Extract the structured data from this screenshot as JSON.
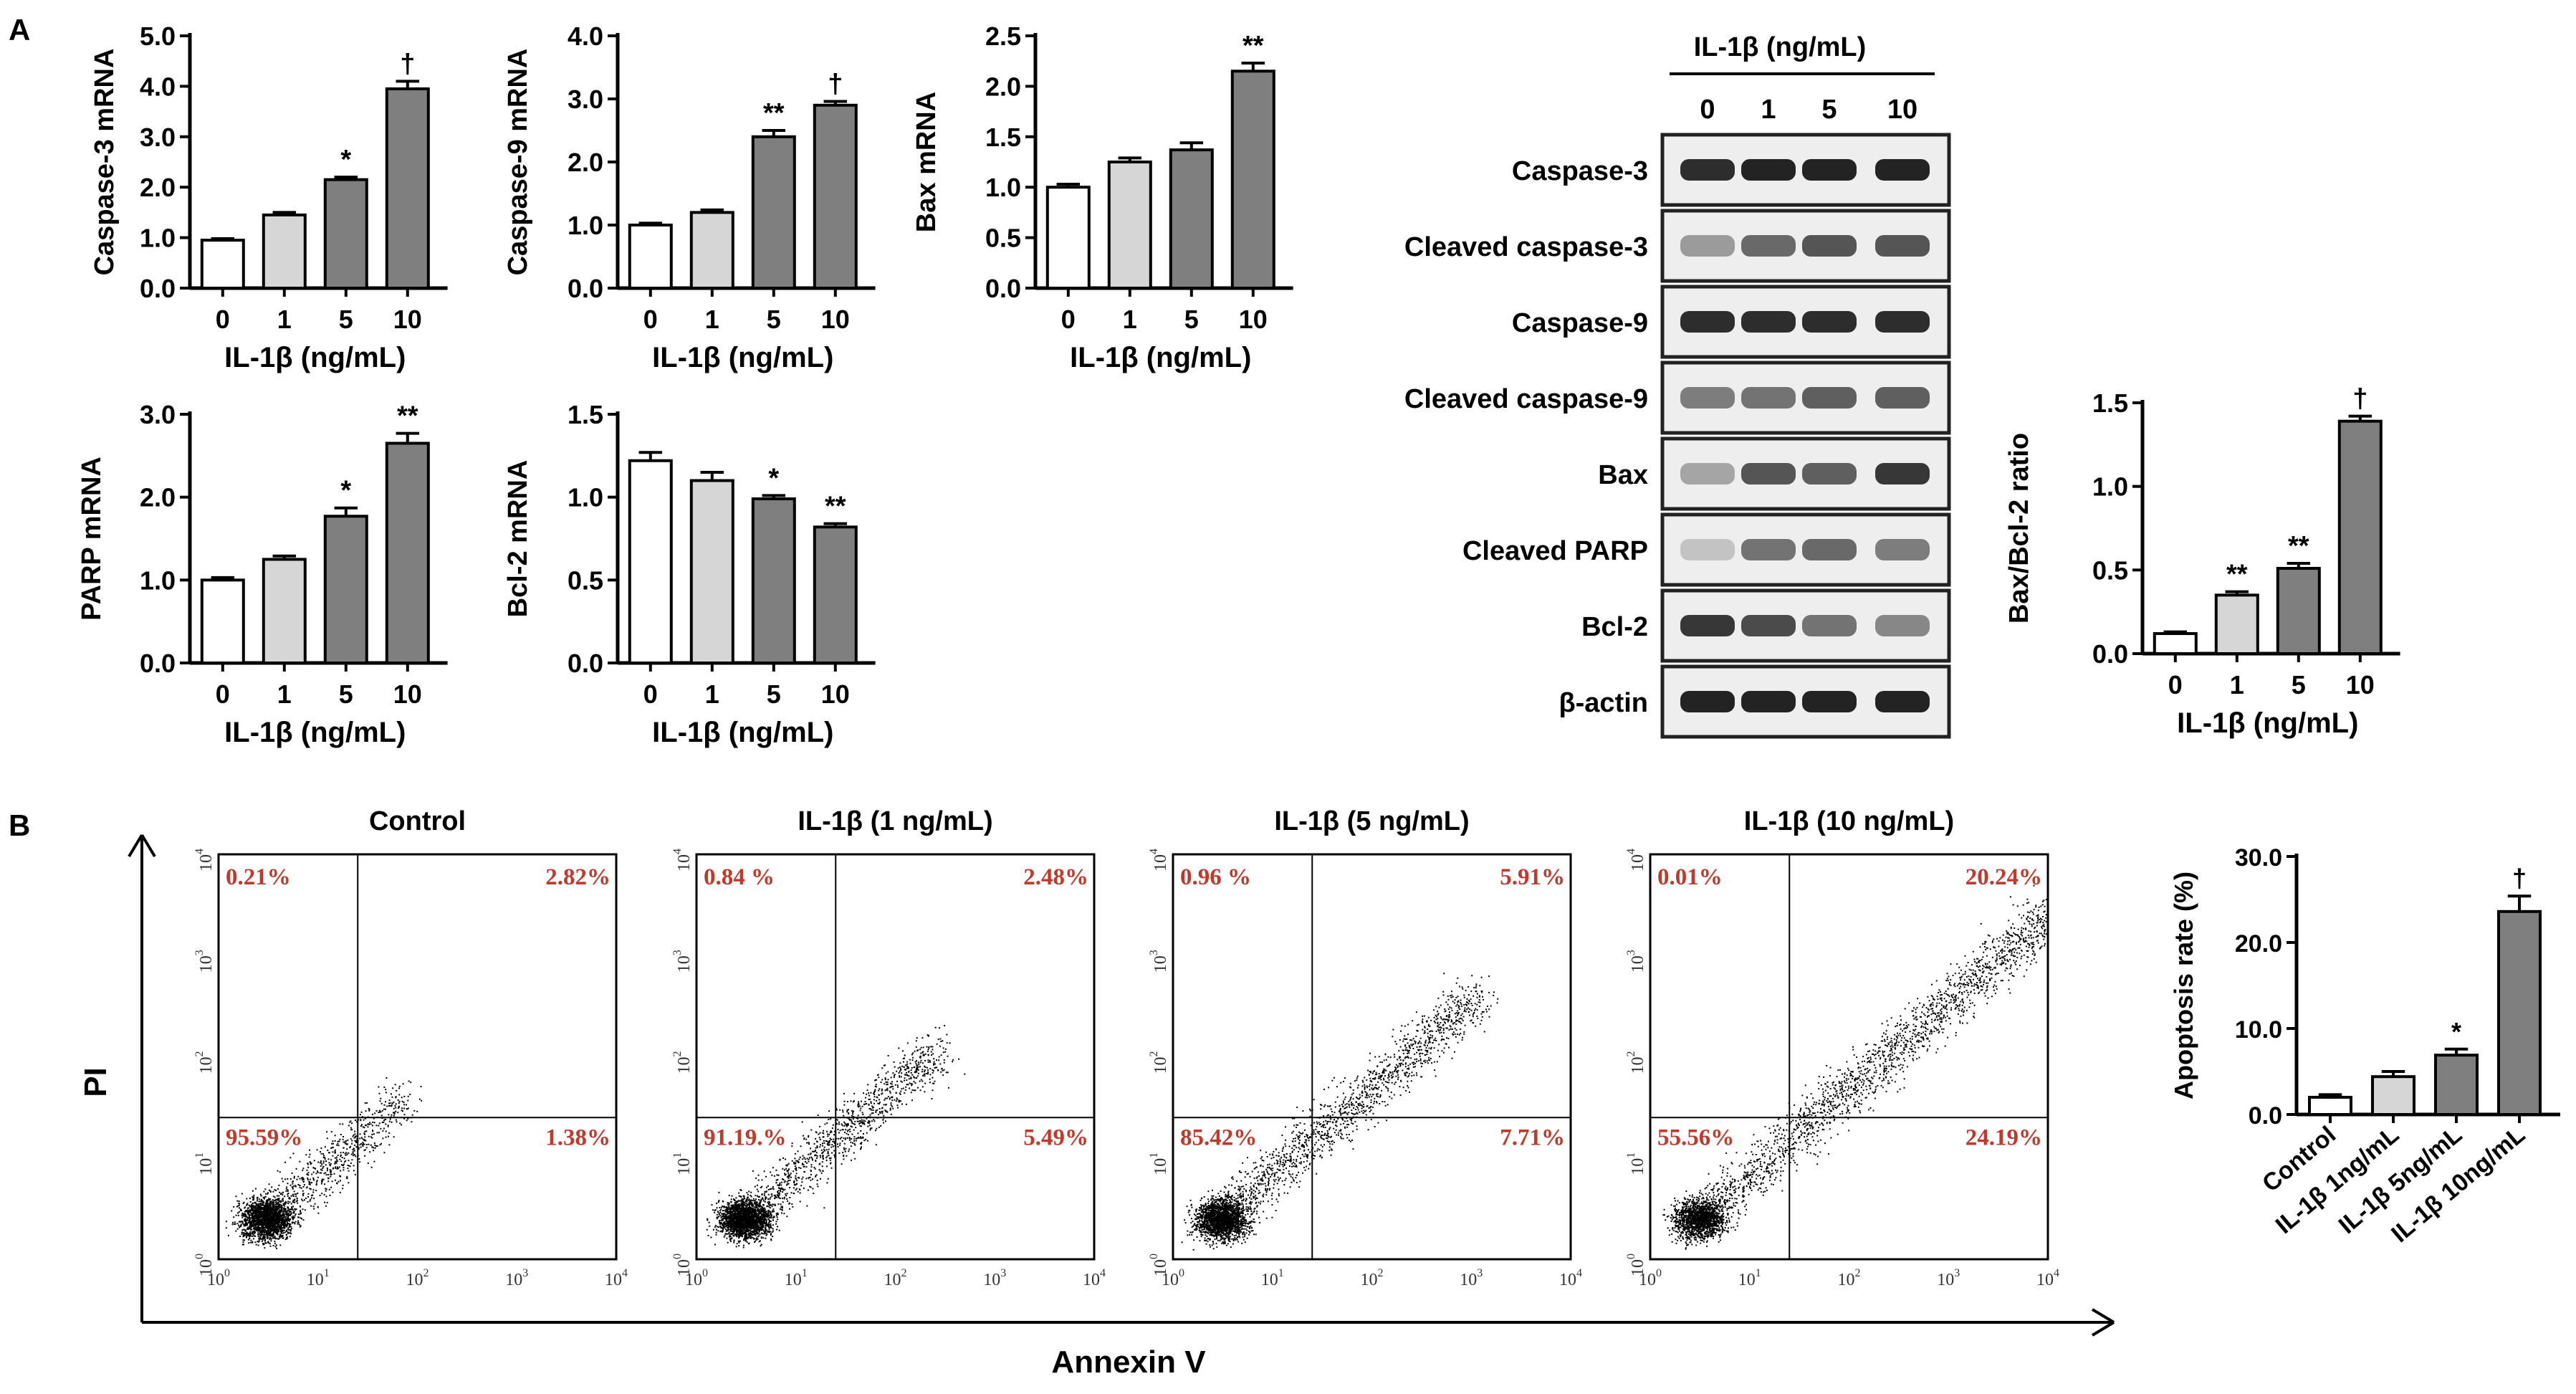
{
  "panel_labels": {
    "a": "A",
    "b": "B"
  },
  "colors": {
    "white_bar": "#ffffff",
    "light_bar": "#d6d6d6",
    "dark_bar": "#7f7f7f",
    "quadrant_text": "#c0392b",
    "dots": "#000000"
  },
  "chart_data": [
    {
      "id": "caspase3",
      "type": "bar",
      "ylabel": "Caspase-3 mRNA",
      "xlabel": "IL-1β (ng/mL)",
      "categories": [
        "0",
        "1",
        "5",
        "10"
      ],
      "values": [
        0.95,
        1.45,
        2.15,
        3.95
      ],
      "errors": [
        0.03,
        0.05,
        0.05,
        0.15
      ],
      "sig": [
        "",
        "",
        "*",
        "†"
      ],
      "ylim": [
        0,
        5.0
      ],
      "yticks": [
        "0.0",
        "1.0",
        "2.0",
        "3.0",
        "4.0",
        "5.0"
      ]
    },
    {
      "id": "caspase9",
      "type": "bar",
      "ylabel": "Caspase-9 mRNA",
      "xlabel": "IL-1β (ng/mL)",
      "categories": [
        "0",
        "1",
        "5",
        "10"
      ],
      "values": [
        1.0,
        1.2,
        2.4,
        2.9
      ],
      "errors": [
        0.03,
        0.04,
        0.1,
        0.06
      ],
      "sig": [
        "",
        "",
        "**",
        "†"
      ],
      "ylim": [
        0,
        4.0
      ],
      "yticks": [
        "0.0",
        "1.0",
        "2.0",
        "3.0",
        "4.0"
      ]
    },
    {
      "id": "bax",
      "type": "bar",
      "ylabel": "Bax mRNA",
      "xlabel": "IL-1β (ng/mL)",
      "categories": [
        "0",
        "1",
        "5",
        "10"
      ],
      "values": [
        1.0,
        1.25,
        1.37,
        2.15
      ],
      "errors": [
        0.03,
        0.04,
        0.07,
        0.08
      ],
      "sig": [
        "",
        "",
        "",
        "**"
      ],
      "ylim": [
        0,
        2.5
      ],
      "yticks": [
        "0.0",
        "0.5",
        "1.0",
        "1.5",
        "2.0",
        "2.5"
      ]
    },
    {
      "id": "parp",
      "type": "bar",
      "ylabel": "PARP mRNA",
      "xlabel": "IL-1β (ng/mL)",
      "categories": [
        "0",
        "1",
        "5",
        "10"
      ],
      "values": [
        1.0,
        1.25,
        1.77,
        2.65
      ],
      "errors": [
        0.03,
        0.04,
        0.1,
        0.12
      ],
      "sig": [
        "",
        "",
        "*",
        "**"
      ],
      "ylim": [
        0,
        3.0
      ],
      "yticks": [
        "0.0",
        "1.0",
        "2.0",
        "3.0"
      ]
    },
    {
      "id": "bcl2",
      "type": "bar",
      "ylabel": "Bcl-2 mRNA",
      "xlabel": "IL-1β (ng/mL)",
      "categories": [
        "0",
        "1",
        "5",
        "10"
      ],
      "values": [
        1.22,
        1.1,
        0.99,
        0.82
      ],
      "errors": [
        0.05,
        0.05,
        0.02,
        0.02
      ],
      "sig": [
        "",
        "",
        "*",
        "**"
      ],
      "ylim": [
        0,
        1.5
      ],
      "yticks": [
        "0.0",
        "0.5",
        "1.0",
        "1.5"
      ]
    },
    {
      "id": "baxbcl2",
      "type": "bar",
      "ylabel": "Bax/Bcl-2 ratio",
      "xlabel": "IL-1β (ng/mL)",
      "categories": [
        "0",
        "1",
        "5",
        "10"
      ],
      "values": [
        0.12,
        0.35,
        0.51,
        1.39
      ],
      "errors": [
        0.01,
        0.02,
        0.03,
        0.03
      ],
      "sig": [
        "",
        "**",
        "**",
        "†"
      ],
      "ylim": [
        0,
        1.5
      ],
      "yticks": [
        "0.0",
        "0.5",
        "1.0",
        "1.5"
      ]
    },
    {
      "id": "apoptosis",
      "type": "bar",
      "ylabel": "Apoptosis rate (%)",
      "xlabel": "",
      "categories": [
        "Control",
        "IL-1β 1ng/mL",
        "IL-1β 5ng/mL",
        "IL-1β 10ng/mL"
      ],
      "values": [
        2.0,
        4.4,
        6.9,
        23.6
      ],
      "errors": [
        0.3,
        0.6,
        0.7,
        1.8
      ],
      "sig": [
        "",
        "",
        "*",
        "†"
      ],
      "ylim": [
        0,
        30
      ],
      "yticks": [
        "0.0",
        "10.0",
        "20.0",
        "30.0"
      ]
    },
    {
      "id": "flow",
      "type": "scatter",
      "xlabel": "Annexin V",
      "ylabel": "PI",
      "axis_ticks": [
        "10",
        "10",
        "10",
        "10",
        "10"
      ],
      "tick_powers": [
        "0",
        "1",
        "2",
        "3",
        "4"
      ],
      "plots": [
        {
          "title": "Control",
          "ul": "0.21%",
          "ur": "2.82%",
          "ll": "95.59%",
          "lr": "1.38%"
        },
        {
          "title": "IL-1β (1 ng/mL)",
          "ul": "0.84 %",
          "ur": "2.48%",
          "ll": "91.19.%",
          "lr": "5.49%"
        },
        {
          "title": "IL-1β (5 ng/mL)",
          "ul": "0.96 %",
          "ur": "5.91%",
          "ll": "85.42%",
          "lr": "7.71%"
        },
        {
          "title": "IL-1β (10 ng/mL)",
          "ul": "0.01%",
          "ur": "20.24%",
          "ll": "55.56%",
          "lr": "24.19%"
        }
      ]
    }
  ],
  "western_blot": {
    "header": "IL-1β (ng/mL)",
    "lanes": [
      "0",
      "1",
      "5",
      "10"
    ],
    "rows": [
      {
        "label": "Caspase-3",
        "intensity": [
          0.9,
          0.95,
          0.95,
          0.95
        ]
      },
      {
        "label": "Cleaved caspase-3",
        "intensity": [
          0.35,
          0.6,
          0.7,
          0.7
        ]
      },
      {
        "label": "Caspase-9",
        "intensity": [
          0.9,
          0.9,
          0.9,
          0.9
        ]
      },
      {
        "label": "Cleaved caspase-9",
        "intensity": [
          0.5,
          0.55,
          0.65,
          0.65
        ]
      },
      {
        "label": "Bax",
        "intensity": [
          0.3,
          0.7,
          0.65,
          0.85
        ]
      },
      {
        "label": "Cleaved PARP",
        "intensity": [
          0.15,
          0.55,
          0.6,
          0.5
        ]
      },
      {
        "label": "Bcl-2",
        "intensity": [
          0.85,
          0.75,
          0.55,
          0.45
        ]
      },
      {
        "label": "β-actin",
        "intensity": [
          0.95,
          0.95,
          0.95,
          0.95
        ]
      }
    ]
  }
}
